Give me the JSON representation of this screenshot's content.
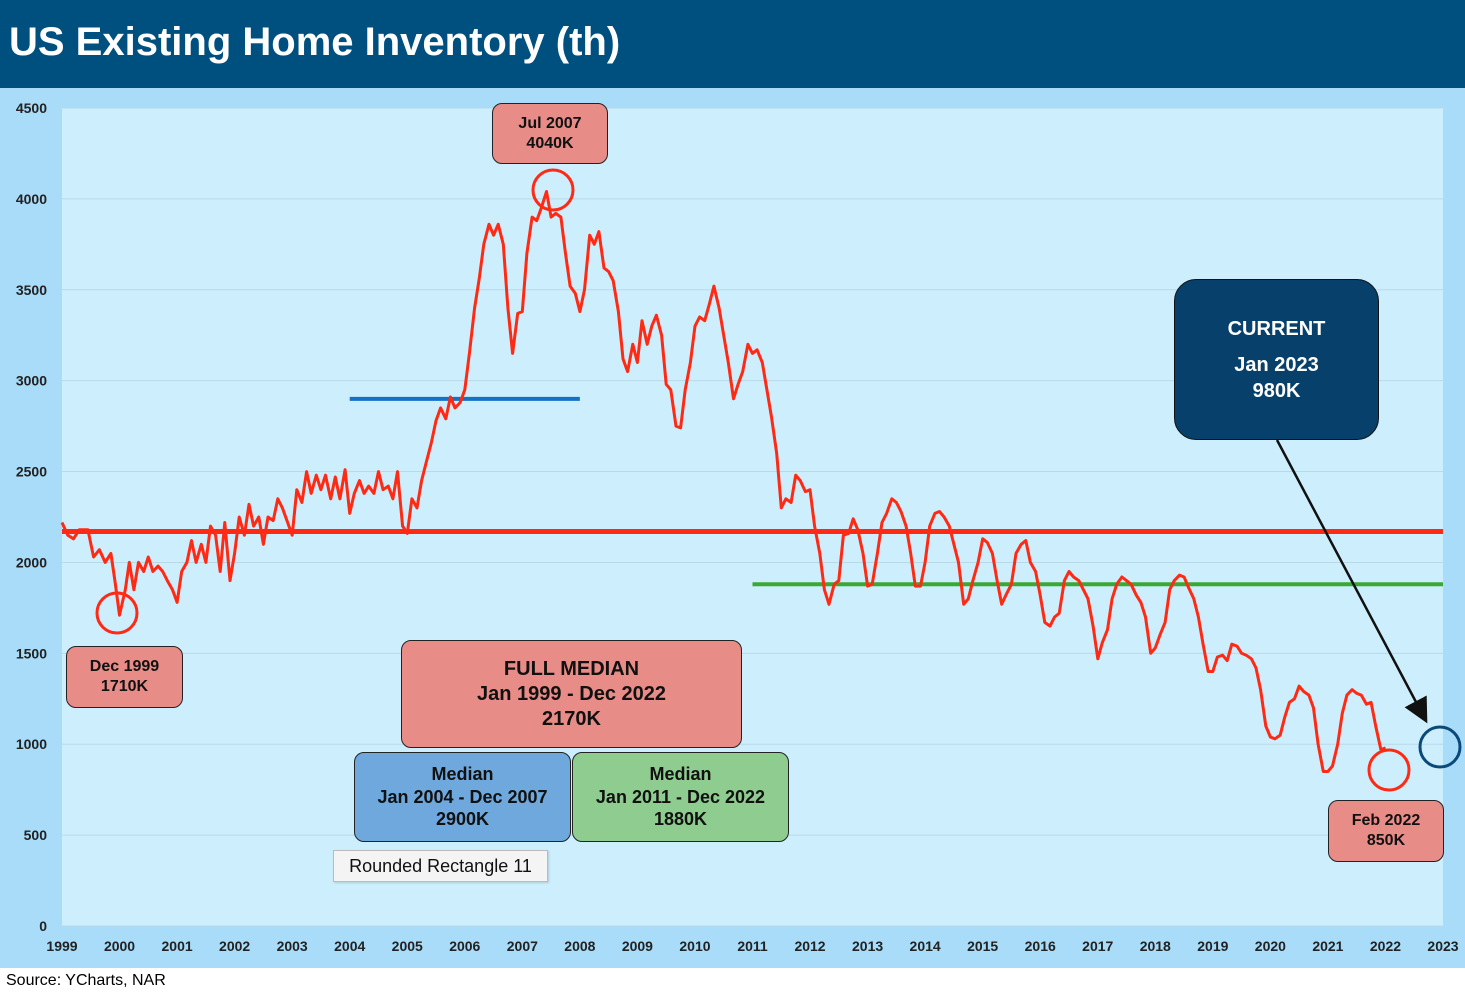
{
  "title": "US Existing Home Inventory (th)",
  "source": "Source: YCharts, NAR",
  "tooltip": "Rounded Rectangle 11",
  "colors": {
    "header": "#00507f",
    "plot_bg": "#cdeefd",
    "frame_bg": "#a8dcf8",
    "series": "#ff2a14",
    "full_median": "#ff2a14",
    "median_2004_2007": "#1670c4",
    "median_2011_2022": "#3aa832",
    "current_circle": "#0a4a7a"
  },
  "annotations": {
    "peak": {
      "line1": "Jul 2007",
      "line2": "4040K"
    },
    "low1999": {
      "line1": "Dec 1999",
      "line2": "1710K"
    },
    "full_median": {
      "line1": "FULL MEDIAN",
      "line2": "Jan 1999 - Dec 2022",
      "line3": "2170K"
    },
    "median_a": {
      "line1": "Median",
      "line2": "Jan 2004 - Dec 2007",
      "line3": "2900K"
    },
    "median_b": {
      "line1": "Median",
      "line2": "Jan 2011 - Dec 2022",
      "line3": "1880K"
    },
    "current": {
      "line1": "CURRENT",
      "line2": "Jan 2023",
      "line3": "980K"
    },
    "low2022": {
      "line1": "Feb 2022",
      "line2": "850K"
    }
  },
  "chart_data": {
    "type": "line",
    "title": "US Existing Home Inventory (th)",
    "ylim": [
      0,
      4500
    ],
    "yticks": [
      0,
      500,
      1000,
      1500,
      2000,
      2500,
      3000,
      3500,
      4000,
      4500
    ],
    "xlim": [
      1999,
      2023
    ],
    "xticks": [
      "1999",
      "2000",
      "2001",
      "2002",
      "2003",
      "2004",
      "2005",
      "2006",
      "2007",
      "2008",
      "2009",
      "2010",
      "2011",
      "2012",
      "2013",
      "2014",
      "2015",
      "2016",
      "2017",
      "2018",
      "2019",
      "2020",
      "2021",
      "2022",
      "2023"
    ],
    "grid": true,
    "reference_lines": [
      {
        "value": 2170,
        "x_start": 1999,
        "x_end": 2023,
        "color": "#ff2a14"
      },
      {
        "value": 2900,
        "x_start": 2004,
        "x_end": 2008,
        "color": "#1670c4"
      },
      {
        "value": 1880,
        "x_start": 2011,
        "x_end": 2023,
        "color": "#3aa832"
      }
    ],
    "series": [
      {
        "values": [
          [
            1999.0,
            2220
          ],
          [
            1999.1,
            2150
          ],
          [
            1999.2,
            2130
          ],
          [
            1999.3,
            2180
          ],
          [
            1999.45,
            2180
          ],
          [
            1999.55,
            2030
          ],
          [
            1999.65,
            2070
          ],
          [
            1999.75,
            2000
          ],
          [
            1999.85,
            2050
          ],
          [
            1999.92,
            1900
          ],
          [
            2000.0,
            1710
          ],
          [
            2000.1,
            1850
          ],
          [
            2000.17,
            2000
          ],
          [
            2000.25,
            1850
          ],
          [
            2000.33,
            2000
          ],
          [
            2000.42,
            1950
          ],
          [
            2000.5,
            2030
          ],
          [
            2000.58,
            1950
          ],
          [
            2000.67,
            1980
          ],
          [
            2000.75,
            1950
          ],
          [
            2000.83,
            1900
          ],
          [
            2000.92,
            1850
          ],
          [
            2001.0,
            1780
          ],
          [
            2001.08,
            1950
          ],
          [
            2001.17,
            2000
          ],
          [
            2001.25,
            2120
          ],
          [
            2001.33,
            2000
          ],
          [
            2001.42,
            2100
          ],
          [
            2001.5,
            2000
          ],
          [
            2001.58,
            2200
          ],
          [
            2001.67,
            2150
          ],
          [
            2001.75,
            1950
          ],
          [
            2001.83,
            2220
          ],
          [
            2001.92,
            1900
          ],
          [
            2002.0,
            2050
          ],
          [
            2002.08,
            2250
          ],
          [
            2002.17,
            2150
          ],
          [
            2002.25,
            2320
          ],
          [
            2002.33,
            2200
          ],
          [
            2002.42,
            2250
          ],
          [
            2002.5,
            2100
          ],
          [
            2002.58,
            2250
          ],
          [
            2002.67,
            2230
          ],
          [
            2002.75,
            2350
          ],
          [
            2002.83,
            2300
          ],
          [
            2003.0,
            2150
          ],
          [
            2003.08,
            2400
          ],
          [
            2003.17,
            2330
          ],
          [
            2003.25,
            2500
          ],
          [
            2003.33,
            2380
          ],
          [
            2003.42,
            2480
          ],
          [
            2003.5,
            2400
          ],
          [
            2003.58,
            2480
          ],
          [
            2003.67,
            2350
          ],
          [
            2003.75,
            2470
          ],
          [
            2003.83,
            2350
          ],
          [
            2003.92,
            2510
          ],
          [
            2004.0,
            2270
          ],
          [
            2004.08,
            2380
          ],
          [
            2004.17,
            2450
          ],
          [
            2004.25,
            2380
          ],
          [
            2004.33,
            2420
          ],
          [
            2004.42,
            2380
          ],
          [
            2004.5,
            2500
          ],
          [
            2004.58,
            2400
          ],
          [
            2004.67,
            2420
          ],
          [
            2004.75,
            2350
          ],
          [
            2004.83,
            2500
          ],
          [
            2004.92,
            2200
          ],
          [
            2005.0,
            2160
          ],
          [
            2005.08,
            2350
          ],
          [
            2005.17,
            2300
          ],
          [
            2005.25,
            2450
          ],
          [
            2005.33,
            2550
          ],
          [
            2005.42,
            2660
          ],
          [
            2005.5,
            2780
          ],
          [
            2005.58,
            2850
          ],
          [
            2005.67,
            2790
          ],
          [
            2005.75,
            2910
          ],
          [
            2005.83,
            2850
          ],
          [
            2005.92,
            2880
          ],
          [
            2006.0,
            2950
          ],
          [
            2006.08,
            3150
          ],
          [
            2006.17,
            3400
          ],
          [
            2006.25,
            3560
          ],
          [
            2006.33,
            3750
          ],
          [
            2006.42,
            3860
          ],
          [
            2006.5,
            3800
          ],
          [
            2006.58,
            3860
          ],
          [
            2006.67,
            3750
          ],
          [
            2006.75,
            3400
          ],
          [
            2006.83,
            3150
          ],
          [
            2006.92,
            3370
          ],
          [
            2007.0,
            3380
          ],
          [
            2007.08,
            3700
          ],
          [
            2007.17,
            3900
          ],
          [
            2007.25,
            3880
          ],
          [
            2007.33,
            3950
          ],
          [
            2007.42,
            4040
          ],
          [
            2007.5,
            3900
          ],
          [
            2007.58,
            3920
          ],
          [
            2007.67,
            3900
          ],
          [
            2007.75,
            3700
          ],
          [
            2007.83,
            3520
          ],
          [
            2007.92,
            3480
          ],
          [
            2008.0,
            3380
          ],
          [
            2008.08,
            3500
          ],
          [
            2008.17,
            3800
          ],
          [
            2008.25,
            3750
          ],
          [
            2008.33,
            3820
          ],
          [
            2008.42,
            3620
          ],
          [
            2008.5,
            3600
          ],
          [
            2008.58,
            3550
          ],
          [
            2008.67,
            3380
          ],
          [
            2008.75,
            3120
          ],
          [
            2008.83,
            3050
          ],
          [
            2008.92,
            3200
          ],
          [
            2009.0,
            3100
          ],
          [
            2009.08,
            3330
          ],
          [
            2009.17,
            3200
          ],
          [
            2009.25,
            3300
          ],
          [
            2009.33,
            3360
          ],
          [
            2009.42,
            3250
          ],
          [
            2009.5,
            2980
          ],
          [
            2009.58,
            2950
          ],
          [
            2009.67,
            2750
          ],
          [
            2009.75,
            2740
          ],
          [
            2009.83,
            2950
          ],
          [
            2009.92,
            3100
          ],
          [
            2010.0,
            3300
          ],
          [
            2010.08,
            3350
          ],
          [
            2010.17,
            3330
          ],
          [
            2010.25,
            3420
          ],
          [
            2010.33,
            3520
          ],
          [
            2010.42,
            3400
          ],
          [
            2010.5,
            3250
          ],
          [
            2010.58,
            3100
          ],
          [
            2010.67,
            2900
          ],
          [
            2010.75,
            2980
          ],
          [
            2010.83,
            3050
          ],
          [
            2010.92,
            3200
          ],
          [
            2011.0,
            3150
          ],
          [
            2011.08,
            3170
          ],
          [
            2011.17,
            3100
          ],
          [
            2011.25,
            2950
          ],
          [
            2011.33,
            2800
          ],
          [
            2011.42,
            2600
          ],
          [
            2011.5,
            2300
          ],
          [
            2011.58,
            2350
          ],
          [
            2011.67,
            2330
          ],
          [
            2011.75,
            2480
          ],
          [
            2011.83,
            2450
          ],
          [
            2011.92,
            2390
          ],
          [
            2012.0,
            2400
          ],
          [
            2012.08,
            2200
          ],
          [
            2012.17,
            2050
          ],
          [
            2012.25,
            1850
          ],
          [
            2012.33,
            1770
          ],
          [
            2012.42,
            1880
          ],
          [
            2012.5,
            1900
          ],
          [
            2012.58,
            2150
          ],
          [
            2012.67,
            2160
          ],
          [
            2012.75,
            2240
          ],
          [
            2012.83,
            2180
          ],
          [
            2012.92,
            2050
          ],
          [
            2013.0,
            1870
          ],
          [
            2013.08,
            1880
          ],
          [
            2013.17,
            2050
          ],
          [
            2013.25,
            2220
          ],
          [
            2013.33,
            2270
          ],
          [
            2013.42,
            2350
          ],
          [
            2013.5,
            2330
          ],
          [
            2013.58,
            2280
          ],
          [
            2013.67,
            2200
          ],
          [
            2013.75,
            2050
          ],
          [
            2013.83,
            1870
          ],
          [
            2013.92,
            1870
          ],
          [
            2014.0,
            2000
          ],
          [
            2014.08,
            2200
          ],
          [
            2014.17,
            2270
          ],
          [
            2014.25,
            2280
          ],
          [
            2014.33,
            2250
          ],
          [
            2014.42,
            2200
          ],
          [
            2014.5,
            2100
          ],
          [
            2014.58,
            2000
          ],
          [
            2014.67,
            1770
          ],
          [
            2014.75,
            1800
          ],
          [
            2014.83,
            1900
          ],
          [
            2014.92,
            2000
          ],
          [
            2015.0,
            2130
          ],
          [
            2015.08,
            2110
          ],
          [
            2015.17,
            2050
          ],
          [
            2015.25,
            1900
          ],
          [
            2015.33,
            1770
          ],
          [
            2015.42,
            1830
          ],
          [
            2015.5,
            1880
          ],
          [
            2015.58,
            2050
          ],
          [
            2015.67,
            2100
          ],
          [
            2015.75,
            2120
          ],
          [
            2015.83,
            2000
          ],
          [
            2015.92,
            1950
          ],
          [
            2016.0,
            1820
          ],
          [
            2016.08,
            1670
          ],
          [
            2016.17,
            1650
          ],
          [
            2016.25,
            1700
          ],
          [
            2016.33,
            1720
          ],
          [
            2016.42,
            1900
          ],
          [
            2016.5,
            1950
          ],
          [
            2016.58,
            1920
          ],
          [
            2016.67,
            1900
          ],
          [
            2016.75,
            1850
          ],
          [
            2016.83,
            1800
          ],
          [
            2016.92,
            1650
          ],
          [
            2017.0,
            1470
          ],
          [
            2017.08,
            1560
          ],
          [
            2017.17,
            1630
          ],
          [
            2017.25,
            1800
          ],
          [
            2017.33,
            1880
          ],
          [
            2017.42,
            1920
          ],
          [
            2017.5,
            1900
          ],
          [
            2017.58,
            1880
          ],
          [
            2017.67,
            1820
          ],
          [
            2017.75,
            1780
          ],
          [
            2017.83,
            1700
          ],
          [
            2017.92,
            1500
          ],
          [
            2018.0,
            1530
          ],
          [
            2018.08,
            1600
          ],
          [
            2018.17,
            1670
          ],
          [
            2018.25,
            1850
          ],
          [
            2018.33,
            1900
          ],
          [
            2018.42,
            1930
          ],
          [
            2018.5,
            1920
          ],
          [
            2018.58,
            1860
          ],
          [
            2018.67,
            1800
          ],
          [
            2018.75,
            1700
          ],
          [
            2018.83,
            1550
          ],
          [
            2018.92,
            1400
          ],
          [
            2019.0,
            1400
          ],
          [
            2019.08,
            1480
          ],
          [
            2019.17,
            1490
          ],
          [
            2019.25,
            1460
          ],
          [
            2019.33,
            1550
          ],
          [
            2019.42,
            1540
          ],
          [
            2019.5,
            1500
          ],
          [
            2019.58,
            1490
          ],
          [
            2019.67,
            1470
          ],
          [
            2019.75,
            1420
          ],
          [
            2019.83,
            1300
          ],
          [
            2019.92,
            1100
          ],
          [
            2020.0,
            1040
          ],
          [
            2020.08,
            1030
          ],
          [
            2020.17,
            1050
          ],
          [
            2020.25,
            1150
          ],
          [
            2020.33,
            1230
          ],
          [
            2020.42,
            1250
          ],
          [
            2020.5,
            1320
          ],
          [
            2020.58,
            1290
          ],
          [
            2020.67,
            1270
          ],
          [
            2020.75,
            1200
          ],
          [
            2020.83,
            1000
          ],
          [
            2020.92,
            850
          ],
          [
            2021.0,
            850
          ],
          [
            2021.08,
            880
          ],
          [
            2021.17,
            1000
          ],
          [
            2021.25,
            1170
          ],
          [
            2021.33,
            1270
          ],
          [
            2021.42,
            1300
          ],
          [
            2021.5,
            1280
          ],
          [
            2021.58,
            1270
          ],
          [
            2021.67,
            1220
          ],
          [
            2021.75,
            1230
          ],
          [
            2021.83,
            1100
          ],
          [
            2021.92,
            970
          ],
          [
            2022.0,
            980
          ]
        ]
      }
    ]
  }
}
